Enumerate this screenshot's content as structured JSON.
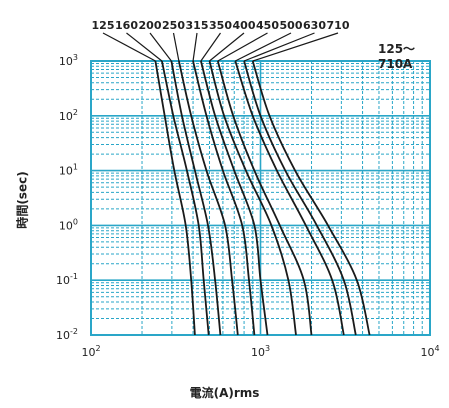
{
  "chart_data": {
    "type": "line",
    "title": "",
    "range_label": "125～710A",
    "xlabel": "電流(A)rms",
    "ylabel": "時間(sec)",
    "x_scale": "log",
    "y_scale": "log",
    "xlim": [
      100,
      10000
    ],
    "ylim": [
      0.01,
      1000
    ],
    "x_ticks": [
      {
        "value": 100,
        "base": "10",
        "exp": "2"
      },
      {
        "value": 1000,
        "base": "10",
        "exp": "3"
      },
      {
        "value": 10000,
        "base": "10",
        "exp": "4"
      }
    ],
    "y_ticks": [
      {
        "value": 1000,
        "base": "10",
        "exp": "3"
      },
      {
        "value": 100,
        "base": "10",
        "exp": "2"
      },
      {
        "value": 10,
        "base": "10",
        "exp": "1"
      },
      {
        "value": 1,
        "base": "10",
        "exp": "0"
      },
      {
        "value": 0.1,
        "base": "10",
        "exp": "-1"
      },
      {
        "value": 0.01,
        "base": "10",
        "exp": "-2"
      }
    ],
    "grid": true,
    "colors": {
      "grid": "#2aa6c8",
      "curve": "#1a1a1a",
      "text": "#222222"
    },
    "series": [
      {
        "name": "125",
        "points": [
          [
            240,
            1000
          ],
          [
            272,
            100
          ],
          [
            310,
            10
          ],
          [
            362,
            1
          ],
          [
            390,
            0.1
          ],
          [
            410,
            0.01
          ]
        ]
      },
      {
        "name": "160",
        "points": [
          [
            262,
            1000
          ],
          [
            306,
            100
          ],
          [
            368,
            10
          ],
          [
            432,
            1
          ],
          [
            462,
            0.1
          ],
          [
            495,
            0.01
          ]
        ]
      },
      {
        "name": "200",
        "points": [
          [
            298,
            1000
          ],
          [
            344,
            100
          ],
          [
            410,
            10
          ],
          [
            490,
            1
          ],
          [
            540,
            0.1
          ],
          [
            580,
            0.01
          ]
        ]
      },
      {
        "name": "250",
        "points": [
          [
            330,
            1000
          ],
          [
            390,
            100
          ],
          [
            480,
            10
          ],
          [
            618,
            1
          ],
          [
            680,
            0.1
          ],
          [
            735,
            0.01
          ]
        ]
      },
      {
        "name": "315",
        "points": [
          [
            400,
            1000
          ],
          [
            480,
            100
          ],
          [
            600,
            10
          ],
          [
            780,
            1
          ],
          [
            855,
            0.1
          ],
          [
            920,
            0.01
          ]
        ]
      },
      {
        "name": "350",
        "points": [
          [
            445,
            1000
          ],
          [
            540,
            100
          ],
          [
            700,
            10
          ],
          [
            920,
            1
          ],
          [
            1000,
            0.1
          ],
          [
            1100,
            0.01
          ]
        ]
      },
      {
        "name": "400",
        "points": [
          [
            500,
            1000
          ],
          [
            610,
            100
          ],
          [
            820,
            10
          ],
          [
            1160,
            1
          ],
          [
            1460,
            0.1
          ],
          [
            1620,
            0.01
          ]
        ]
      },
      {
        "name": "450",
        "points": [
          [
            560,
            1000
          ],
          [
            690,
            100
          ],
          [
            920,
            10
          ],
          [
            1300,
            1
          ],
          [
            1800,
            0.1
          ],
          [
            2000,
            0.01
          ]
        ]
      },
      {
        "name": "500",
        "points": [
          [
            710,
            1000
          ],
          [
            900,
            100
          ],
          [
            1250,
            10
          ],
          [
            1850,
            1
          ],
          [
            2650,
            0.1
          ],
          [
            3100,
            0.01
          ]
        ]
      },
      {
        "name": "630",
        "points": [
          [
            800,
            1000
          ],
          [
            1000,
            100
          ],
          [
            1400,
            10
          ],
          [
            2150,
            1
          ],
          [
            3100,
            0.1
          ],
          [
            3650,
            0.01
          ]
        ]
      },
      {
        "name": "710",
        "points": [
          [
            900,
            1000
          ],
          [
            1130,
            100
          ],
          [
            1600,
            10
          ],
          [
            2500,
            1
          ],
          [
            3700,
            0.1
          ],
          [
            4400,
            0.01
          ]
        ]
      }
    ]
  }
}
